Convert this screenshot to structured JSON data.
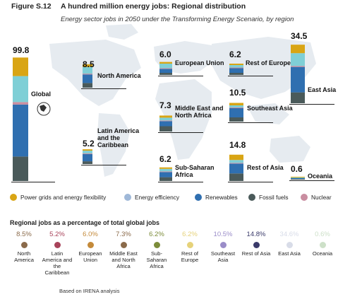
{
  "header": {
    "figure_label": "Figure S.12",
    "title": "A hundred million energy jobs: Regional distribution",
    "subtitle": "Energy sector jobs in 2050 under the Transforming Energy Scenario, by region"
  },
  "colors": {
    "grid_flex": "#d9a514",
    "energy_efficiency": "#7fcfd6",
    "renewables": "#2f6fb0",
    "fossil_fuels": "#4a5a5a",
    "nuclear": "#c98da0",
    "map": "#e6ebf0"
  },
  "chart_data": {
    "type": "bar",
    "title": "A hundred million energy jobs: Regional distribution",
    "subtitle": "Energy sector jobs in 2050 under the Transforming Energy Scenario, by region",
    "units": "million jobs",
    "categories": [
      "Global",
      "North America",
      "Latin America and the Caribbean",
      "European Union",
      "Middle East and North Africa",
      "Sub-Saharan Africa",
      "Rest of Europe",
      "Southeast Asia",
      "Rest of Asia",
      "East Asia",
      "Oceania"
    ],
    "totals": [
      99.8,
      8.5,
      5.2,
      6.0,
      7.3,
      6.2,
      6.2,
      10.5,
      14.8,
      34.5,
      0.6
    ],
    "series": [
      {
        "name": "Power grids and energy flexibility",
        "values": [
          15.0,
          1.0,
          0.5,
          0.8,
          1.0,
          0.7,
          0.8,
          1.4,
          3.0,
          5.0,
          0.05
        ]
      },
      {
        "name": "Energy efficiency",
        "values": [
          21.0,
          2.4,
          1.0,
          2.1,
          1.3,
          1.2,
          1.4,
          1.2,
          1.6,
          7.5,
          0.15
        ]
      },
      {
        "name": "Nuclear",
        "values": [
          2.0,
          0.3,
          0.1,
          0.2,
          0.1,
          0.1,
          0.2,
          0.3,
          0.3,
          0.6,
          0.0
        ]
      },
      {
        "name": "Renewables",
        "values": [
          42.0,
          3.1,
          2.6,
          1.9,
          2.4,
          2.4,
          2.6,
          5.2,
          5.6,
          15.0,
          0.25
        ]
      },
      {
        "name": "Fossil fuels",
        "values": [
          19.8,
          1.7,
          1.0,
          1.0,
          2.5,
          1.8,
          1.2,
          2.4,
          4.3,
          6.4,
          0.15
        ]
      }
    ],
    "legend": [
      "Power grids and energy flexibility",
      "Energy efficiency",
      "Renewables",
      "Fossil fuels",
      "Nuclear"
    ],
    "legend_placement": "bottom"
  },
  "regions": [
    {
      "name": "Global",
      "total_label": "99.8"
    },
    {
      "name": "North America",
      "total_label": "8.5"
    },
    {
      "name": "Latin America and the Caribbean",
      "total_label": "5.2"
    },
    {
      "name": "European Union",
      "total_label": "6.0"
    },
    {
      "name": "Middle East and North Africa",
      "total_label": "7.3"
    },
    {
      "name": "Sub-Saharan Africa",
      "total_label": "6.2"
    },
    {
      "name": "Rest of Europe",
      "total_label": "6.2"
    },
    {
      "name": "Southeast Asia",
      "total_label": "10.5"
    },
    {
      "name": "Rest of Asia",
      "total_label": "14.8"
    },
    {
      "name": "East Asia",
      "total_label": "34.5"
    },
    {
      "name": "Oceania",
      "total_label": "0.6"
    }
  ],
  "legend_items": [
    {
      "label": "Power grids and energy flexibility",
      "color": "#d9a514"
    },
    {
      "label": "Energy efficiency",
      "color": "#9fb8d8"
    },
    {
      "label": "Renewables",
      "color": "#2f6fb0"
    },
    {
      "label": "Fossil fuels",
      "color": "#4a5a5a"
    },
    {
      "label": "Nuclear",
      "color": "#c98da0"
    }
  ],
  "share_section": {
    "title": "Regional jobs as a percentage of total global jobs",
    "items": [
      {
        "pct": "8.5",
        "name": "North America",
        "color": "#8a6a4a"
      },
      {
        "pct": "5.2",
        "name": "Latin America and the Caribbean",
        "color": "#a8435a"
      },
      {
        "pct": "6.0",
        "name": "European Union",
        "color": "#c48a3a"
      },
      {
        "pct": "7.3",
        "name": "Middle East and North Africa",
        "color": "#8a6a4a"
      },
      {
        "pct": "6.2",
        "name": "Sub-Saharan Africa",
        "color": "#7c8c3a"
      },
      {
        "pct": "6.2",
        "name": "Rest of Europe",
        "color": "#e6d27a"
      },
      {
        "pct": "10.5",
        "name": "Southeast Asia",
        "color": "#9a8cc8"
      },
      {
        "pct": "14.8",
        "name": "Rest of Asia",
        "color": "#3a3a6a"
      },
      {
        "pct": "34.6",
        "name": "East Asia",
        "color": "#d8dce8"
      },
      {
        "pct": "0.6",
        "name": "Oceania",
        "color": "#cde0c8"
      }
    ],
    "pct_suffix": "%"
  },
  "footer": {
    "note": "Based on IRENA analysis"
  }
}
